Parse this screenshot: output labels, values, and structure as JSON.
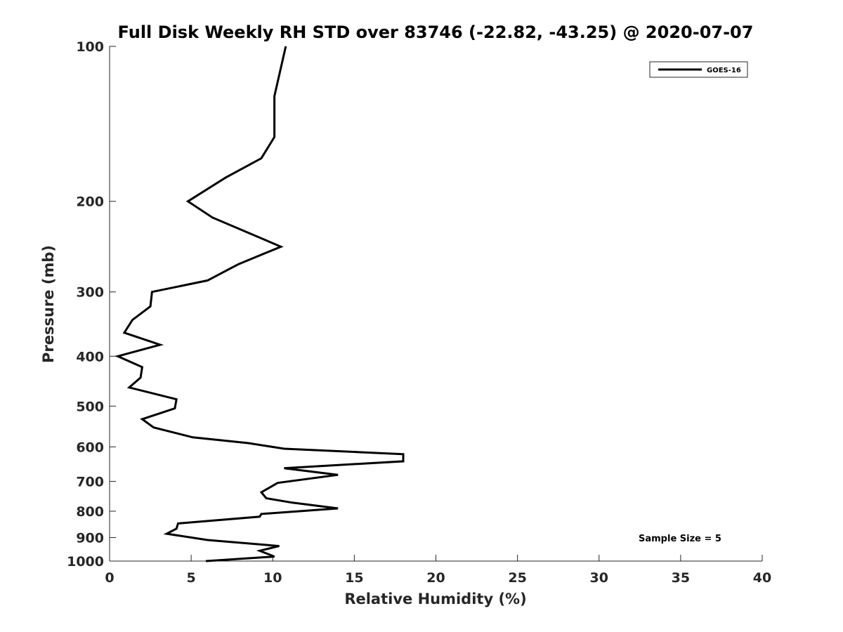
{
  "chart_data": {
    "type": "line",
    "title": "Full Disk Weekly RH STD over 83746 (-22.82, -43.25) @ 2020-07-07",
    "xlabel": "Relative Humidity (%)",
    "ylabel": "Pressure (mb)",
    "xlim": [
      0,
      40
    ],
    "ylim": [
      100,
      1000
    ],
    "y_scale": "log",
    "y_reversed": true,
    "x_ticks": [
      "0",
      "5",
      "10",
      "15",
      "20",
      "25",
      "30",
      "35",
      "40"
    ],
    "y_ticks": [
      "100",
      "200",
      "300",
      "400",
      "500",
      "600",
      "700",
      "800",
      "900",
      "1000"
    ],
    "grid": false,
    "legend_position": "top-right",
    "annotation": "Sample Size = 5",
    "line_color": "#000000",
    "series": [
      {
        "name": "GOES-16",
        "x": [
          10.8,
          10.1,
          10.1,
          9.3,
          7.1,
          4.8,
          6.3,
          10.5,
          7.9,
          6.0,
          2.6,
          2.5,
          1.4,
          0.9,
          3.1,
          0.5,
          2.0,
          1.9,
          1.2,
          4.1,
          4.0,
          2.0,
          2.7,
          5.1,
          8.5,
          10.7,
          18.0,
          18.0,
          10.7,
          14.0,
          10.3,
          9.3,
          9.6,
          11.2,
          14.0,
          9.3,
          9.2,
          4.2,
          4.1,
          3.5,
          6.0,
          10.4,
          9.2,
          10.1,
          5.9
        ],
        "y": [
          100,
          125,
          150,
          165,
          180,
          200,
          215,
          245,
          265,
          285,
          300,
          320,
          340,
          360,
          380,
          400,
          420,
          440,
          460,
          485,
          505,
          530,
          550,
          575,
          590,
          605,
          620,
          640,
          660,
          680,
          705,
          735,
          755,
          770,
          790,
          810,
          820,
          845,
          865,
          885,
          910,
          935,
          955,
          980,
          1000
        ]
      }
    ]
  }
}
